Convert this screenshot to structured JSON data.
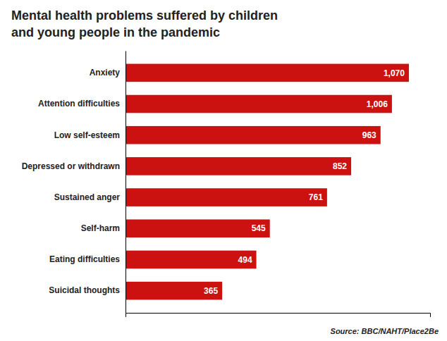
{
  "chart_data": {
    "type": "bar",
    "orientation": "horizontal",
    "title": "Mental health problems suffered by children",
    "subtitle": "and young people in the pandemic",
    "categories": [
      "Anxiety",
      "Attention difficulties",
      "Low self-esteem",
      "Depressed or withdrawn",
      "Sustained anger",
      "Self-harm",
      "Eating difficulties",
      "Suicidal thoughts"
    ],
    "values": [
      1070,
      1006,
      963,
      852,
      761,
      545,
      494,
      365
    ],
    "value_labels": [
      "1,070",
      "1,006",
      "963",
      "852",
      "761",
      "545",
      "494",
      "365"
    ],
    "data_labels": true,
    "color": "#cc1111",
    "xlim": [
      0,
      1150
    ],
    "tick_labels": "y",
    "grid": false,
    "annotations": [
      "Source: BBC/NAHT/Place2Be"
    ]
  }
}
